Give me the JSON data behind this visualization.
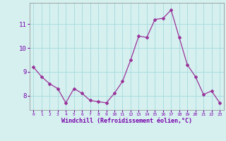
{
  "x": [
    0,
    1,
    2,
    3,
    4,
    5,
    6,
    7,
    8,
    9,
    10,
    11,
    12,
    13,
    14,
    15,
    16,
    17,
    18,
    19,
    20,
    21,
    22,
    23
  ],
  "y": [
    9.2,
    8.8,
    8.5,
    8.3,
    7.7,
    8.3,
    8.1,
    7.8,
    7.75,
    7.7,
    8.1,
    8.6,
    9.5,
    10.5,
    10.45,
    11.2,
    11.25,
    11.6,
    10.45,
    9.3,
    8.8,
    8.05,
    8.2,
    7.7
  ],
  "line_color": "#993399",
  "marker": "D",
  "marker_size": 2.0,
  "bg_color": "#d6f0f0",
  "grid_color": "#aadddd",
  "xlabel": "Windchill (Refroidissement éolien,°C)",
  "xlabel_color": "#7700aa",
  "tick_color": "#7700aa",
  "ylim": [
    7.4,
    11.9
  ],
  "yticks": [
    8,
    9,
    10,
    11
  ],
  "xticks": [
    0,
    1,
    2,
    3,
    4,
    5,
    6,
    7,
    8,
    9,
    10,
    11,
    12,
    13,
    14,
    15,
    16,
    17,
    18,
    19,
    20,
    21,
    22,
    23
  ]
}
